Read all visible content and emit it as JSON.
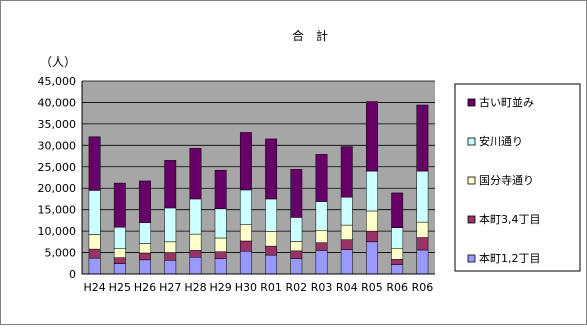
{
  "chart_data": {
    "type": "bar",
    "stacked": true,
    "title": "合　計",
    "unit_label": "（人）",
    "xlabel": "",
    "ylabel": "",
    "ylim": [
      0,
      45000
    ],
    "yticks": [
      0,
      5000,
      10000,
      15000,
      20000,
      25000,
      30000,
      35000,
      40000,
      45000
    ],
    "ytick_labels": [
      "0",
      "5,000",
      "10,000",
      "15,000",
      "20,000",
      "25,000",
      "30,000",
      "35,000",
      "40,000",
      "45,000"
    ],
    "grid": true,
    "legend_position": "right",
    "plot_background": "#a6a6a6",
    "categories": [
      "H24",
      "H25",
      "H26",
      "H27",
      "H28",
      "H29",
      "H30",
      "R01",
      "R02",
      "R03",
      "R04",
      "R05",
      "R06"
    ],
    "series": [
      {
        "name": "本町1,2丁目",
        "color": "#9999ff",
        "values": [
          3700,
          2400,
          3300,
          3200,
          3900,
          3600,
          5300,
          4400,
          3600,
          5500,
          5700,
          7500,
          2200
        ]
      },
      {
        "name": "本町3,4丁目",
        "color": "#993366",
        "values": [
          2100,
          1400,
          1600,
          1800,
          1600,
          1600,
          2400,
          2100,
          1800,
          1800,
          2300,
          2500,
          1200
        ]
      },
      {
        "name": "国分寺通り",
        "color": "#ffffcc",
        "values": [
          3400,
          2100,
          2200,
          2500,
          3800,
          3200,
          3800,
          3400,
          2200,
          2900,
          3400,
          4700,
          2600
        ]
      },
      {
        "name": "安川通り",
        "color": "#ccffff",
        "values": [
          10300,
          5000,
          4900,
          7900,
          8200,
          6800,
          8100,
          7600,
          5600,
          6700,
          6500,
          9300,
          4800
        ]
      },
      {
        "name": "古い町並み",
        "color": "#660066",
        "values": [
          12500,
          10300,
          9700,
          11100,
          11800,
          9000,
          13400,
          14000,
          11200,
          11000,
          11800,
          16200,
          8100
        ]
      }
    ],
    "series_ext": [
      {
        "name": "本町1,2丁目",
        "r06": 5600
      },
      {
        "name": "本町3,4丁目",
        "r06": 2900
      },
      {
        "name": "国分寺通り",
        "r06": 3600
      },
      {
        "name": "安川通り",
        "r06": 11900
      },
      {
        "name": "古い町並み",
        "r06": 15400
      }
    ]
  }
}
